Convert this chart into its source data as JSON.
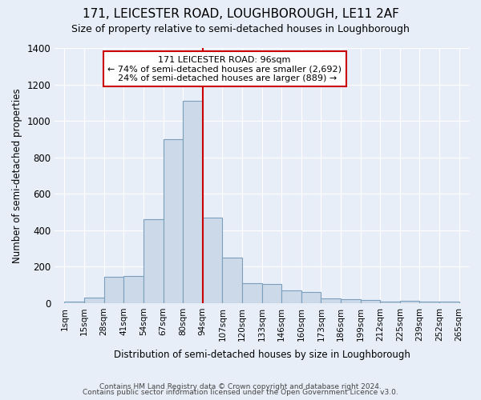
{
  "title": "171, LEICESTER ROAD, LOUGHBOROUGH, LE11 2AF",
  "subtitle": "Size of property relative to semi-detached houses in Loughborough",
  "xlabel": "Distribution of semi-detached houses by size in Loughborough",
  "ylabel": "Number of semi-detached properties",
  "bar_labels": [
    "1sqm",
    "15sqm",
    "28sqm",
    "41sqm",
    "54sqm",
    "67sqm",
    "80sqm",
    "94sqm",
    "107sqm",
    "120sqm",
    "133sqm",
    "146sqm",
    "160sqm",
    "173sqm",
    "186sqm",
    "199sqm",
    "212sqm",
    "225sqm",
    "239sqm",
    "252sqm",
    "265sqm"
  ],
  "bar_values": [
    10,
    30,
    145,
    150,
    460,
    900,
    1110,
    470,
    250,
    110,
    105,
    70,
    60,
    25,
    20,
    15,
    10,
    13,
    10,
    10
  ],
  "bar_color": "#ccd9e8",
  "bar_edgecolor": "#7aa0be",
  "property_label": "171 LEICESTER ROAD: 96sqm",
  "pct_smaller": 74,
  "n_smaller": 2692,
  "pct_larger": 24,
  "n_larger": 889,
  "vline_color": "#cc0000",
  "annotation_box_edgecolor": "#cc0000",
  "annotation_box_facecolor": "#ffffff",
  "ylim": [
    0,
    1400
  ],
  "yticks": [
    0,
    200,
    400,
    600,
    800,
    1000,
    1200,
    1400
  ],
  "background_color": "#e8eef8",
  "grid_color": "#ffffff",
  "footer_line1": "Contains HM Land Registry data © Crown copyright and database right 2024.",
  "footer_line2": "Contains public sector information licensed under the Open Government Licence v3.0."
}
